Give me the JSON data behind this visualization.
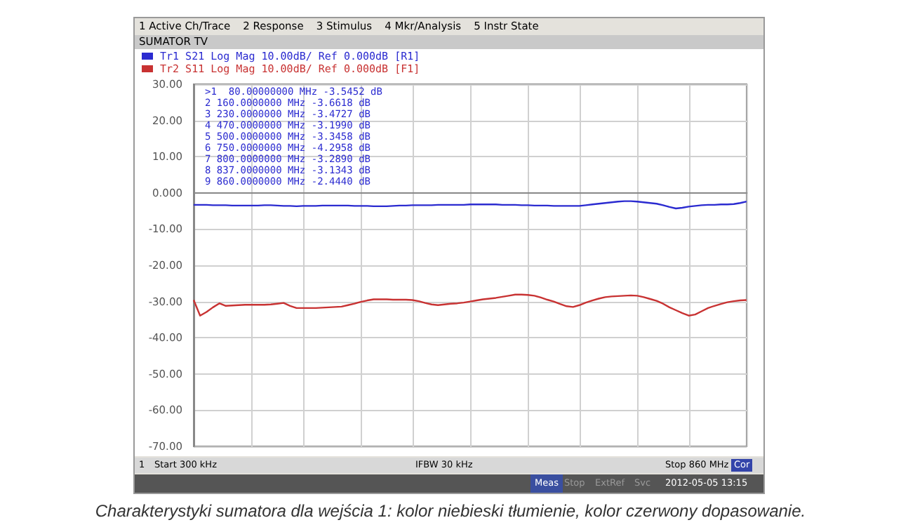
{
  "chart_data": {
    "type": "line",
    "title": "SUMATOR TV",
    "categories": [
      null,
      null,
      null,
      null,
      null,
      null,
      null,
      null,
      null,
      null,
      null,
      null,
      null,
      null,
      null,
      null,
      null,
      null,
      null,
      null,
      null,
      null,
      null,
      null,
      null,
      null,
      null,
      null,
      null,
      null,
      null,
      null,
      null,
      null,
      null,
      null,
      null,
      null,
      null,
      null,
      null,
      null,
      null,
      null,
      null,
      null,
      null,
      null,
      null,
      null,
      null,
      null,
      null,
      null,
      null,
      null,
      null,
      null,
      null,
      null,
      null,
      null,
      null,
      null,
      null,
      null,
      null,
      null,
      null,
      null,
      null,
      null,
      null,
      null,
      null,
      null,
      null,
      null,
      null,
      null,
      null,
      null,
      null,
      null,
      null,
      null,
      null
    ],
    "series": [
      {
        "name": "Tr1 S21 Log Mag 10.00dB/ Ref 0.000dB [R1]",
        "color": "#2b2bd0",
        "values": [
          -3.3,
          -3.3,
          -3.3,
          -3.4,
          -3.4,
          -3.4,
          -3.5,
          -3.5,
          -3.5,
          -3.5,
          -3.5,
          -3.4,
          -3.4,
          -3.5,
          -3.6,
          -3.6,
          -3.7,
          -3.6,
          -3.6,
          -3.6,
          -3.5,
          -3.5,
          -3.5,
          -3.5,
          -3.5,
          -3.6,
          -3.6,
          -3.6,
          -3.7,
          -3.7,
          -3.7,
          -3.6,
          -3.5,
          -3.5,
          -3.4,
          -3.4,
          -3.4,
          -3.4,
          -3.3,
          -3.3,
          -3.3,
          -3.3,
          -3.3,
          -3.2,
          -3.2,
          -3.2,
          -3.2,
          -3.2,
          -3.3,
          -3.3,
          -3.3,
          -3.4,
          -3.4,
          -3.5,
          -3.5,
          -3.5,
          -3.6,
          -3.6,
          -3.6,
          -3.6,
          -3.6,
          -3.4,
          -3.2,
          -3.0,
          -2.8,
          -2.6,
          -2.4,
          -2.3,
          -2.3,
          -2.4,
          -2.6,
          -2.8,
          -3.0,
          -3.4,
          -3.9,
          -4.3,
          -4.1,
          -3.8,
          -3.6,
          -3.4,
          -3.3,
          -3.3,
          -3.2,
          -3.2,
          -3.1,
          -2.8,
          -2.4
        ]
      },
      {
        "name": "Tr2 S11 Log Mag 10.00dB/ Ref 0.000dB [F1]",
        "color": "#c83232",
        "values": [
          -29.6,
          -33.9,
          -32.9,
          -31.6,
          -30.5,
          -31.2,
          -31.1,
          -31.0,
          -30.9,
          -30.9,
          -30.9,
          -30.9,
          -30.8,
          -30.6,
          -30.4,
          -31.2,
          -31.8,
          -31.8,
          -31.8,
          -31.8,
          -31.7,
          -31.6,
          -31.5,
          -31.4,
          -31.0,
          -30.6,
          -30.1,
          -29.7,
          -29.4,
          -29.4,
          -29.4,
          -29.5,
          -29.5,
          -29.5,
          -29.6,
          -29.9,
          -30.4,
          -30.8,
          -31.0,
          -30.8,
          -30.6,
          -30.5,
          -30.3,
          -30.0,
          -29.7,
          -29.4,
          -29.2,
          -29.0,
          -28.7,
          -28.4,
          -28.1,
          -28.1,
          -28.2,
          -28.4,
          -28.9,
          -29.5,
          -30.0,
          -30.7,
          -31.3,
          -31.5,
          -31.0,
          -30.3,
          -29.7,
          -29.2,
          -28.8,
          -28.6,
          -28.5,
          -28.4,
          -28.3,
          -28.4,
          -28.8,
          -29.3,
          -29.8,
          -30.6,
          -31.6,
          -32.4,
          -33.2,
          -33.9,
          -33.6,
          -32.7,
          -31.8,
          -31.2,
          -30.7,
          -30.2,
          -29.9,
          -29.7,
          -29.6
        ]
      }
    ],
    "ylim": [
      -70,
      30
    ],
    "yticks": [
      {
        "value": 30,
        "label": "30.00"
      },
      {
        "value": 20,
        "label": "20.00"
      },
      {
        "value": 10,
        "label": "10.00"
      },
      {
        "value": 0,
        "label": "0.000"
      },
      {
        "value": -10,
        "label": "-10.00"
      },
      {
        "value": -20,
        "label": "-20.00"
      },
      {
        "value": -30,
        "label": "-30.00"
      },
      {
        "value": -40,
        "label": "-40.00"
      },
      {
        "value": -50,
        "label": "-50.00"
      },
      {
        "value": -60,
        "label": "-60.00"
      },
      {
        "value": -70,
        "label": "-70.00"
      }
    ],
    "tick_labels": "y",
    "grid": true,
    "legend": "top left",
    "line_style": "solid",
    "annotations": [
      "1 Active Ch/Trace",
      "2 Response",
      "3 Stimulus",
      "4 Mkr/Analysis",
      "5 Instr State",
      ">1  80.00000000 MHz -3.5452 dB",
      "2 160.0000000 MHz -3.6618 dB",
      "3 230.0000000 MHz -3.4727 dB",
      "4 470.0000000 MHz -3.1990 dB",
      "5 500.0000000 MHz -3.3458 dB",
      "6 750.0000000 MHz -4.2958 dB",
      "7 800.0000000 MHz -3.2890 dB",
      "8 837.0000000 MHz -3.1343 dB",
      "9 860.0000000 MHz -2.4440 dB",
      "1",
      "Start 300 kHz",
      "IFBW 30 kHz",
      "Stop 860 MHz",
      "Cor",
      "Meas",
      "Stop",
      "ExtRef",
      "Svc",
      "2012-05-05 13:15",
      "Charakterystyki sumatora dla wejścia 1: kolor niebieski tłumienie, kolor czerwony dopasowanie."
    ]
  }
}
